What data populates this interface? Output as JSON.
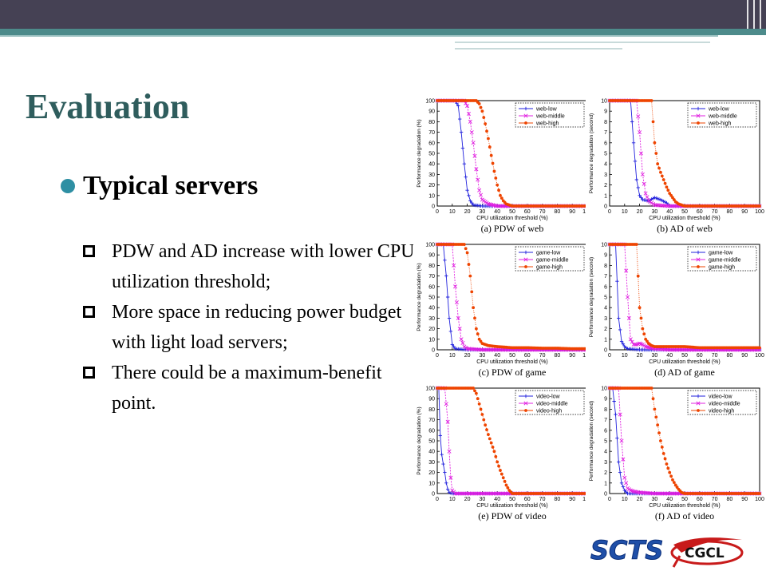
{
  "slide": {
    "title": "Evaluation",
    "heading": "Typical servers",
    "items": [
      "PDW and AD increase with lower CPU utilization threshold;",
      "More space in reducing power budget with light load servers;",
      "There could be a maximum-benefit point."
    ]
  },
  "logos": [
    "SCTS",
    "CGCL"
  ],
  "colors": {
    "low": "#2222dd",
    "middle": "#e020e0",
    "high": "#ee4400",
    "title": "#2f5d5d",
    "bullet": "#2e8fa3"
  },
  "chart_data": [
    {
      "type": "line",
      "caption": "(a) PDW of web",
      "xlabel": "CPU utilization threshold (%)",
      "ylabel": "Performance degradation (%)",
      "xlim": [
        0,
        100
      ],
      "ylim": [
        0,
        100
      ],
      "xticks": [
        0,
        10,
        20,
        30,
        40,
        50,
        60,
        70,
        80,
        90,
        100
      ],
      "yticks": [
        0,
        10,
        20,
        30,
        40,
        50,
        60,
        70,
        80,
        90,
        100
      ],
      "legend_position": "top-right",
      "series": [
        {
          "name": "web-low",
          "x": [
            0,
            12,
            14,
            16,
            18,
            20,
            22,
            24,
            30,
            40,
            100
          ],
          "y": [
            100,
            100,
            95,
            70,
            40,
            15,
            5,
            1,
            0,
            0,
            0
          ]
        },
        {
          "name": "web-middle",
          "x": [
            0,
            18,
            20,
            22,
            24,
            26,
            28,
            30,
            34,
            40,
            50,
            100
          ],
          "y": [
            100,
            100,
            95,
            80,
            60,
            35,
            15,
            6,
            2,
            0,
            0,
            0
          ]
        },
        {
          "name": "web-high",
          "x": [
            0,
            26,
            28,
            30,
            32,
            34,
            36,
            38,
            40,
            42,
            44,
            46,
            50,
            100
          ],
          "y": [
            100,
            100,
            97,
            90,
            78,
            64,
            48,
            33,
            20,
            10,
            5,
            2,
            0,
            0
          ]
        }
      ]
    },
    {
      "type": "line",
      "caption": "(b) AD of web",
      "xlabel": "CPU utilization threshold (%)",
      "ylabel": "Performance degradation (second)",
      "xlim": [
        0,
        100
      ],
      "ylim": [
        0,
        10
      ],
      "xticks": [
        0,
        10,
        20,
        30,
        40,
        50,
        60,
        70,
        80,
        90,
        100
      ],
      "yticks": [
        0,
        1,
        2,
        3,
        4,
        5,
        6,
        7,
        8,
        9,
        10
      ],
      "legend_position": "top-right",
      "series": [
        {
          "name": "web-low",
          "x": [
            0,
            14,
            16,
            18,
            20,
            22,
            26,
            30,
            34,
            38,
            40,
            100
          ],
          "y": [
            10,
            10,
            6,
            2.5,
            1,
            0.6,
            0.5,
            0.8,
            0.6,
            0.3,
            0,
            0
          ]
        },
        {
          "name": "web-middle",
          "x": [
            0,
            18,
            20,
            22,
            24,
            26,
            28,
            30,
            40,
            100
          ],
          "y": [
            10,
            10,
            7,
            3,
            1.2,
            0.5,
            0.3,
            0.1,
            0,
            0
          ]
        },
        {
          "name": "web-high",
          "x": [
            0,
            28,
            30,
            32,
            34,
            36,
            38,
            40,
            42,
            44,
            46,
            50,
            100
          ],
          "y": [
            10,
            10,
            6,
            4,
            3.2,
            2.5,
            1.8,
            1.2,
            0.8,
            0.4,
            0.2,
            0,
            0
          ]
        }
      ]
    },
    {
      "type": "line",
      "caption": "(c) PDW of game",
      "xlabel": "CPU utilization threshold (%)",
      "ylabel": "Performance degradation (%)",
      "xlim": [
        0,
        100
      ],
      "ylim": [
        0,
        100
      ],
      "xticks": [
        0,
        10,
        20,
        30,
        40,
        50,
        60,
        70,
        80,
        90,
        100
      ],
      "yticks": [
        0,
        10,
        20,
        30,
        40,
        50,
        60,
        70,
        80,
        90,
        100
      ],
      "legend_position": "top-right",
      "series": [
        {
          "name": "game-low",
          "x": [
            0,
            4,
            6,
            8,
            10,
            12,
            20,
            100
          ],
          "y": [
            100,
            100,
            70,
            30,
            5,
            1,
            0,
            0
          ]
        },
        {
          "name": "game-middle",
          "x": [
            0,
            10,
            12,
            14,
            16,
            18,
            20,
            30,
            100
          ],
          "y": [
            100,
            100,
            60,
            30,
            10,
            3,
            1,
            0,
            0
          ]
        },
        {
          "name": "game-high",
          "x": [
            0,
            18,
            20,
            22,
            24,
            26,
            28,
            30,
            34,
            40,
            50,
            60,
            70,
            80,
            90,
            100
          ],
          "y": [
            100,
            100,
            92,
            70,
            40,
            20,
            10,
            6,
            4,
            3,
            2,
            2,
            1.5,
            1.5,
            1,
            1
          ]
        }
      ]
    },
    {
      "type": "line",
      "caption": "(d) AD of game",
      "xlabel": "CPU utilization threshold (%)",
      "ylabel": "Performance degradation (second)",
      "xlim": [
        0,
        100
      ],
      "ylim": [
        0,
        10
      ],
      "xticks": [
        0,
        10,
        20,
        30,
        40,
        50,
        60,
        70,
        80,
        90,
        100
      ],
      "yticks": [
        0,
        1,
        2,
        3,
        4,
        5,
        6,
        7,
        8,
        9,
        10
      ],
      "legend_position": "top-right",
      "series": [
        {
          "name": "game-low",
          "x": [
            0,
            4,
            6,
            8,
            10,
            12,
            20,
            100
          ],
          "y": [
            10,
            10,
            3,
            0.8,
            0.3,
            0.1,
            0,
            0
          ]
        },
        {
          "name": "game-middle",
          "x": [
            0,
            10,
            12,
            14,
            16,
            18,
            20,
            22,
            24,
            30,
            40,
            100
          ],
          "y": [
            10,
            10,
            5,
            1,
            0.5,
            0.5,
            0.6,
            0.5,
            0.3,
            0.1,
            0,
            0
          ]
        },
        {
          "name": "game-high",
          "x": [
            0,
            18,
            20,
            22,
            24,
            26,
            28,
            30,
            40,
            50,
            60,
            70,
            80,
            90,
            100
          ],
          "y": [
            10,
            10,
            4,
            2,
            1,
            0.6,
            0.4,
            0.3,
            0.3,
            0.3,
            0.2,
            0.2,
            0.2,
            0.2,
            0.2
          ]
        }
      ]
    },
    {
      "type": "line",
      "caption": "(e) PDW of video",
      "xlabel": "CPU utilization threshold (%)",
      "ylabel": "Performance degradation (%)",
      "xlim": [
        0,
        100
      ],
      "ylim": [
        0,
        100
      ],
      "xticks": [
        0,
        10,
        20,
        30,
        40,
        50,
        60,
        70,
        80,
        90,
        100
      ],
      "yticks": [
        0,
        10,
        20,
        30,
        40,
        50,
        60,
        70,
        80,
        90,
        100
      ],
      "legend_position": "top-right",
      "series": [
        {
          "name": "video-low",
          "x": [
            0,
            1,
            2,
            3,
            4,
            5,
            6,
            7,
            8,
            10,
            100
          ],
          "y": [
            100,
            100,
            55,
            37,
            28,
            20,
            10,
            4,
            1,
            0,
            0
          ]
        },
        {
          "name": "video-middle",
          "x": [
            0,
            5,
            6,
            7,
            8,
            9,
            10,
            12,
            100
          ],
          "y": [
            100,
            100,
            85,
            68,
            40,
            15,
            3,
            0,
            0
          ]
        },
        {
          "name": "video-high",
          "x": [
            0,
            24,
            26,
            28,
            30,
            32,
            34,
            36,
            38,
            40,
            42,
            44,
            46,
            48,
            50,
            100
          ],
          "y": [
            100,
            100,
            95,
            85,
            75,
            65,
            56,
            48,
            40,
            30,
            22,
            15,
            8,
            3,
            0,
            0
          ]
        }
      ]
    },
    {
      "type": "line",
      "caption": "(f) AD of video",
      "xlabel": "CPU utilization threshold (%)",
      "ylabel": "Performance degradation (second)",
      "xlim": [
        0,
        100
      ],
      "ylim": [
        0,
        10
      ],
      "xticks": [
        0,
        10,
        20,
        30,
        40,
        50,
        60,
        70,
        80,
        90,
        100
      ],
      "yticks": [
        0,
        1,
        2,
        3,
        4,
        5,
        6,
        7,
        8,
        9,
        10
      ],
      "legend_position": "top-right",
      "series": [
        {
          "name": "video-low",
          "x": [
            0,
            2,
            4,
            6,
            8,
            10,
            12,
            100
          ],
          "y": [
            10,
            10,
            7.5,
            3,
            1,
            0.3,
            0,
            0
          ]
        },
        {
          "name": "video-middle",
          "x": [
            0,
            6,
            8,
            10,
            12,
            14,
            16,
            20,
            30,
            100
          ],
          "y": [
            10,
            10,
            5,
            1.5,
            0.5,
            0.3,
            0.2,
            0.1,
            0,
            0
          ]
        },
        {
          "name": "video-high",
          "x": [
            0,
            28,
            30,
            32,
            34,
            36,
            38,
            40,
            42,
            44,
            46,
            48,
            50,
            100
          ],
          "y": [
            10,
            10,
            8,
            6.5,
            5,
            3.8,
            2.8,
            2,
            1.3,
            0.8,
            0.4,
            0.1,
            0,
            0
          ]
        }
      ]
    }
  ]
}
